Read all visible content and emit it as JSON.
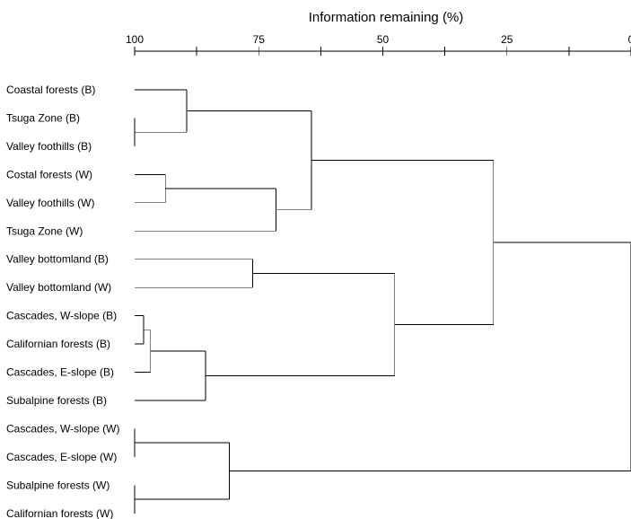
{
  "axis": {
    "title": "Information remaining (%)",
    "range": [
      100,
      0
    ],
    "tick_values": [
      100,
      87.5,
      75,
      62.5,
      50,
      37.5,
      25,
      12.5,
      0
    ],
    "tick_labels": [
      {
        "value": 100,
        "label": "100"
      },
      {
        "value": 75,
        "label": "75"
      },
      {
        "value": 50,
        "label": "50"
      },
      {
        "value": 25,
        "label": "25"
      },
      {
        "value": 0,
        "label": "0"
      }
    ]
  },
  "leaves": [
    "Coastal forests (B)",
    "Tsuga Zone (B)",
    "Valley foothills (B)",
    "Costal forests (W)",
    "Valley foothills (W)",
    "Tsuga Zone (W)",
    "Valley bottomland (B)",
    "Valley bottomland (W)",
    "Cascades, W-slope (B)",
    "Californian forests (B)",
    "Cascades, E-slope (B)",
    "Subalpine forests (B)",
    "Cascades, W-slope (W)",
    "Cascades, E-slope (W)",
    "Subalpine forests (W)",
    "Californian forests (W)"
  ],
  "merges": [
    {
      "id": "m1",
      "children": [
        "L1",
        "L2"
      ],
      "info": 100
    },
    {
      "id": "m2",
      "children": [
        "L0",
        "m1"
      ],
      "info": 89.5
    },
    {
      "id": "m3",
      "children": [
        "L3",
        "L4"
      ],
      "info": 93.8
    },
    {
      "id": "m4",
      "children": [
        "m3",
        "L5"
      ],
      "info": 71.5
    },
    {
      "id": "m5",
      "children": [
        "m2",
        "m4"
      ],
      "info": 64.4
    },
    {
      "id": "m6",
      "children": [
        "L6",
        "L7"
      ],
      "info": 76.2
    },
    {
      "id": "m7",
      "children": [
        "L8",
        "L9"
      ],
      "info": 98.2
    },
    {
      "id": "m8",
      "children": [
        "m7",
        "L10"
      ],
      "info": 96.8
    },
    {
      "id": "m9",
      "children": [
        "m8",
        "L11"
      ],
      "info": 85.7
    },
    {
      "id": "m10",
      "children": [
        "m6",
        "m9"
      ],
      "info": 47.6
    },
    {
      "id": "m11",
      "children": [
        "m5",
        "m10"
      ],
      "info": 27.7
    },
    {
      "id": "m12",
      "children": [
        "L12",
        "L13"
      ],
      "info": 100
    },
    {
      "id": "m13",
      "children": [
        "L14",
        "L15"
      ],
      "info": 100
    },
    {
      "id": "m14",
      "children": [
        "m12",
        "m13"
      ],
      "info": 80.9
    },
    {
      "id": "m15",
      "children": [
        "m11",
        "m14"
      ],
      "info": 0
    }
  ]
}
